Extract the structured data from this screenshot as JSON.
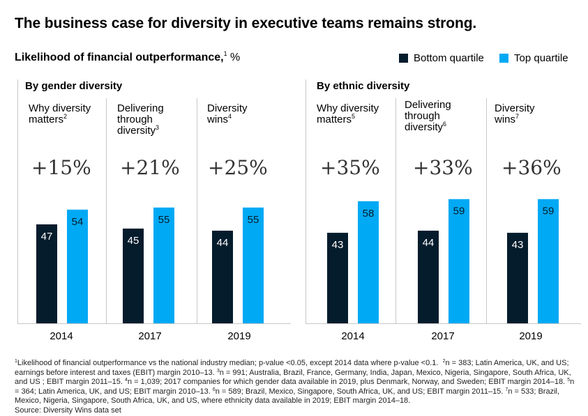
{
  "title": "The business case for diversity in executive teams remains strong.",
  "subtitle": "Likelihood of financial outperformance,",
  "subtitle_sup": "1",
  "subtitle_unit": " %",
  "legend": {
    "bottom": {
      "label": "Bottom quartile",
      "color": "#051c2c"
    },
    "top": {
      "label": "Top quartile",
      "color": "#00a9f4"
    }
  },
  "groups": [
    {
      "label": "By gender diversity"
    },
    {
      "label": "By ethnic diversity"
    }
  ],
  "panels": [
    {
      "label_lines": [
        "Why diversity",
        "matters"
      ],
      "sup": "2",
      "uplift": "+15%",
      "year": "2014"
    },
    {
      "label_lines": [
        "Delivering",
        "through",
        "diversity"
      ],
      "sup": "3",
      "uplift": "+21%",
      "year": "2017"
    },
    {
      "label_lines": [
        "Diversity",
        "wins"
      ],
      "sup": "4",
      "uplift": "+25%",
      "year": "2019"
    },
    {
      "label_lines": [
        "Why diversity",
        "matters"
      ],
      "sup": "5",
      "uplift": "+35%",
      "year": "2014"
    },
    {
      "label_lines": [
        "Delivering",
        "through",
        "diversity"
      ],
      "sup": "6",
      "uplift": "+33%",
      "year": "2017"
    },
    {
      "label_lines": [
        "Diversity",
        "wins"
      ],
      "sup": "7",
      "uplift": "+36%",
      "year": "2019"
    }
  ],
  "chart_data": {
    "type": "bar",
    "title": "The business case for diversity in executive teams remains strong.",
    "ylabel": "Likelihood of financial outperformance, %",
    "ylim": [
      0,
      70
    ],
    "grid": false,
    "legend_position": "top-right",
    "categories": [
      "2014",
      "2017",
      "2019",
      "2014",
      "2017",
      "2019"
    ],
    "series": [
      {
        "name": "Bottom quartile",
        "values": [
          47,
          45,
          44,
          43,
          44,
          43
        ]
      },
      {
        "name": "Top quartile",
        "values": [
          54,
          55,
          55,
          58,
          59,
          59
        ]
      }
    ]
  },
  "footnotes": {
    "f1_sup": "1",
    "f1": "Likelihood of financial outperformance vs the national industry median; p-value <0.05, except 2014 data where p-value <0.1.",
    "f2_sup": "2",
    "f2": "n = 383; Latin America, UK, and US; earnings before interest and taxes (EBIT) margin 2010–13.",
    "f3_sup": "3",
    "f3": "n = 991; Australia, Brazil, France, Germany, India, Japan, Mexico, Nigeria, Singapore, South Africa, UK, and US ; EBIT margin 2011–15.",
    "f4_sup": "4",
    "f4": "n = 1,039; 2017 companies for which gender data available in 2019, plus Denmark, Norway, and Sweden;  EBIT margin 2014–18.",
    "f5_sup": "5",
    "f5": "n = 364; Latin America, UK, and US; EBIT margin 2010–13.",
    "f6_sup": "6",
    "f6": "n = 589; Brazil, Mexico, Singapore, South Africa, UK, and US; EBIT margin 2011–15.",
    "f7_sup": "7",
    "f7": "n = 533; Brazil, Mexico, Nigeria, Singapore, South Africa, UK, and US, where ethnicity data available in 2019; EBIT margin 2014–18.",
    "source": "Source: Diversity Wins data set"
  }
}
